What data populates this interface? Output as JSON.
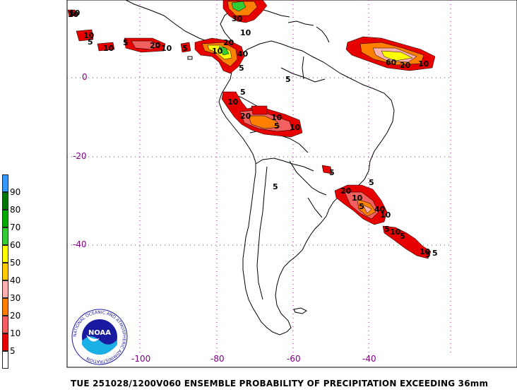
{
  "footer": "TUE 251028/1200V060  ENSEMBLE PROBABILITY OF PRECIPITATION EXCEEDING 36mm",
  "lat_labels": [
    "0",
    "-20",
    "-40"
  ],
  "lon_labels": [
    "-100",
    "-80",
    "-60",
    "-40"
  ],
  "legend": {
    "labels": [
      "5",
      "10",
      "20",
      "30",
      "40",
      "50",
      "60",
      "70",
      "80",
      "90"
    ],
    "colors": [
      "#ffffff",
      "#e60000",
      "#f26060",
      "#ff8000",
      "#ffb0b0",
      "#ffcc00",
      "#ffff00",
      "#33cc33",
      "#00aa00",
      "#007700",
      "#3399ff"
    ]
  },
  "logo": {
    "text": "NOAA",
    "ring_text": "NATIONAL OCEANIC AND ATMOSPHERIC ADMINISTRATION"
  },
  "contour_labels": [
    "10",
    "5",
    "10",
    "5",
    "20",
    "10",
    "5",
    "10",
    "40",
    "30",
    "10",
    "20",
    "60",
    "20",
    "10",
    "5",
    "5",
    "10",
    "20",
    "10",
    "5",
    "10",
    "5",
    "5",
    "5",
    "20",
    "10",
    "5",
    "40",
    "5",
    "10",
    "5",
    "10",
    "5",
    "10",
    "5",
    "5",
    "10",
    "10"
  ],
  "colors": {
    "grid": "#cc00cc",
    "axis_label": "#800080",
    "coast": "#000000"
  }
}
